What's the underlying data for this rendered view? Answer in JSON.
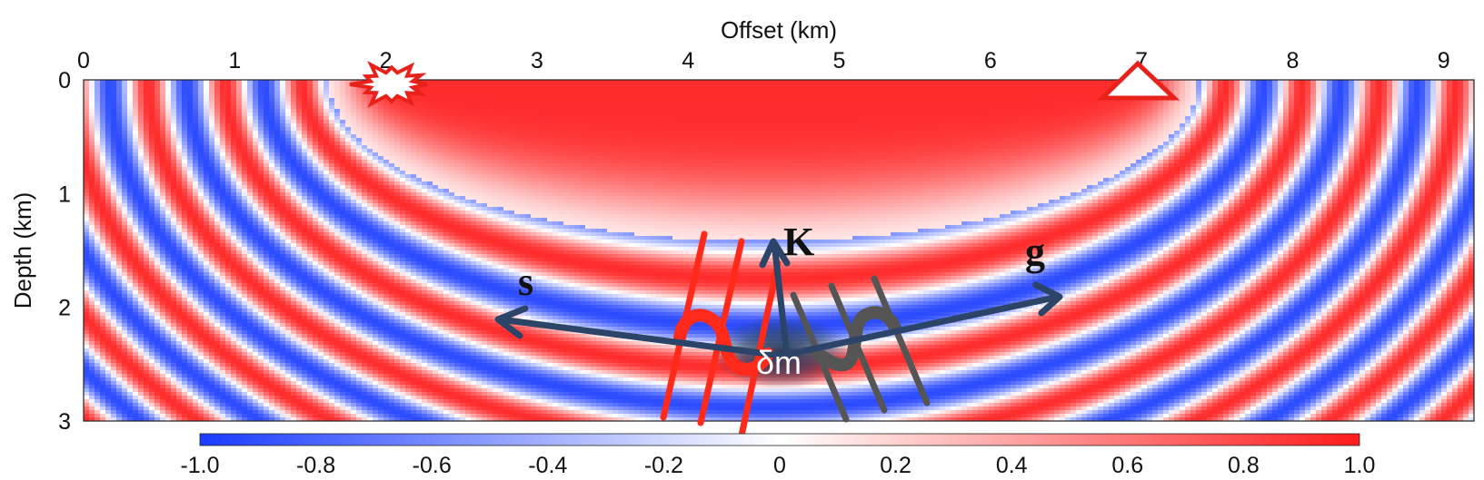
{
  "x_axis": {
    "title": "Offset (km)",
    "ticks": [
      "0",
      "1",
      "2",
      "3",
      "4",
      "5",
      "6",
      "7",
      "8",
      "9"
    ]
  },
  "y_axis": {
    "title": "Depth (km)",
    "ticks": [
      "0",
      "1",
      "2",
      "3"
    ]
  },
  "colorbar": {
    "ticks": [
      "-1.0",
      "-0.8",
      "-0.6",
      "-0.4",
      "-0.2",
      "0",
      "0.2",
      "0.4",
      "0.6",
      "0.8",
      "1.0"
    ],
    "min_color": "#1a3cff",
    "mid_color": "#ffffff",
    "max_color": "#ff1a1a"
  },
  "labels": {
    "k": "K",
    "s": "s",
    "g": "g",
    "dm": "δm"
  },
  "colors": {
    "arrow": "#2b4468",
    "source_marker": "#e8221a",
    "receiver_marker": "#e8221a",
    "red_wave": "#ff2a1a",
    "gray_wave": "#555555"
  },
  "icons": {
    "source": "explosion-star-icon",
    "receiver": "triangle-icon"
  }
}
